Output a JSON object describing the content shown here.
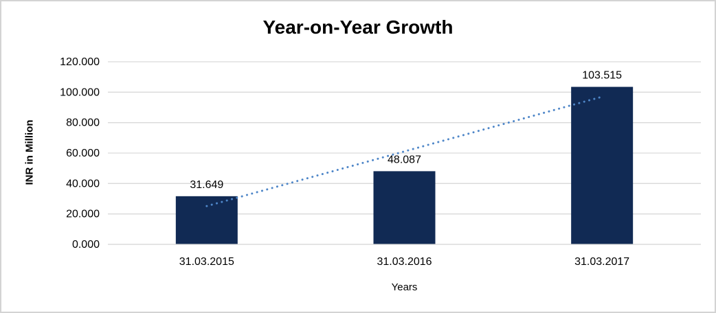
{
  "chart_data": {
    "type": "bar",
    "title": "Year-on-Year Growth",
    "xlabel": "Years",
    "ylabel": "INR in Million",
    "categories": [
      "31.03.2015",
      "31.03.2016",
      "31.03.2017"
    ],
    "values": [
      31.649,
      48.087,
      103.515
    ],
    "value_labels": [
      "31.649",
      "48.087",
      "103.515"
    ],
    "y_ticks": [
      "0.000",
      "20.000",
      "40.000",
      "60.000",
      "80.000",
      "100.000",
      "120.000"
    ],
    "y_tick_values": [
      0,
      20,
      40,
      60,
      80,
      100,
      120
    ],
    "ylim": [
      0,
      120
    ],
    "grid": "horizontal",
    "legend": "none",
    "trendline": {
      "type": "linear",
      "style": "dotted"
    },
    "colors": {
      "bar": "#112A54",
      "trendline": "#4E86C8",
      "gridline": "#D9D9D9",
      "axis_line": "#D9D9D9",
      "text": "#000000",
      "frame_border": "#D3D3D3",
      "background": "#FFFFFF"
    }
  }
}
